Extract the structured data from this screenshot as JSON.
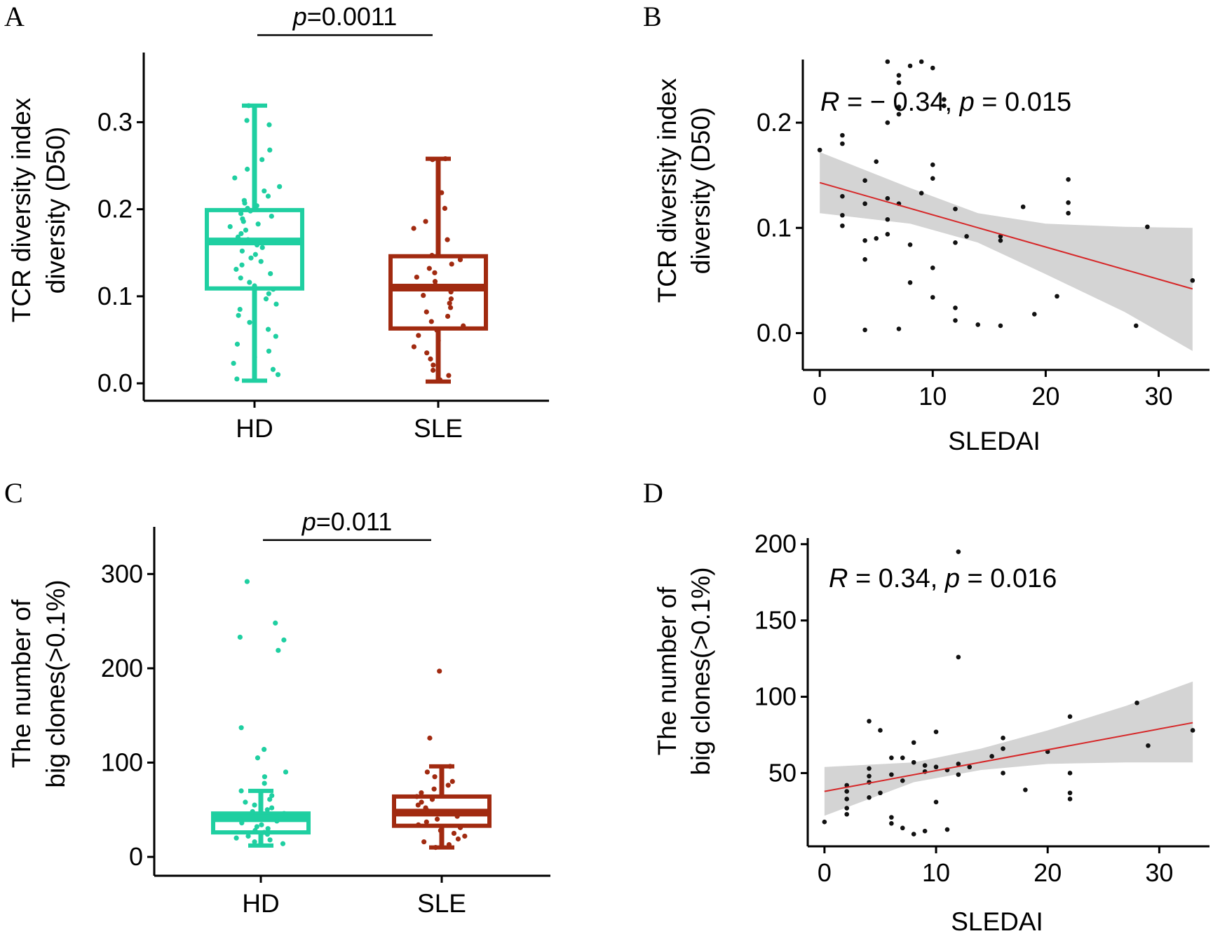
{
  "colors": {
    "hd": "#1fcfa1",
    "sle": "#a12a10",
    "axis": "#000000",
    "point": "#111111",
    "fit": "#d62728",
    "band": "#d4d4d4"
  },
  "chart_data": [
    {
      "panel": "A",
      "type": "box",
      "ylabel_line1": "TCR diversity index",
      "ylabel_line2": "diversity (D50)",
      "categories": [
        "HD",
        "SLE"
      ],
      "ylim": [
        -0.02,
        0.38
      ],
      "yticks": [
        0.0,
        0.1,
        0.2,
        0.3
      ],
      "ytick_labels": [
        "0.0",
        "0.1",
        "0.2",
        "0.3"
      ],
      "boxes": [
        {
          "name": "HD",
          "min": 0.003,
          "q1": 0.109,
          "median": 0.163,
          "q3": 0.199,
          "max": 0.319,
          "points": [
            0.319,
            0.302,
            0.297,
            0.268,
            0.257,
            0.246,
            0.236,
            0.226,
            0.221,
            0.215,
            0.21,
            0.207,
            0.204,
            0.201,
            0.198,
            0.195,
            0.192,
            0.189,
            0.186,
            0.183,
            0.18,
            0.176,
            0.172,
            0.168,
            0.165,
            0.162,
            0.159,
            0.156,
            0.152,
            0.148,
            0.144,
            0.14,
            0.136,
            0.131,
            0.126,
            0.121,
            0.116,
            0.112,
            0.108,
            0.103,
            0.097,
            0.091,
            0.085,
            0.078,
            0.07,
            0.062,
            0.054,
            0.045,
            0.037,
            0.03,
            0.023,
            0.016,
            0.01,
            0.005
          ]
        },
        {
          "name": "SLE",
          "min": 0.002,
          "q1": 0.063,
          "median": 0.11,
          "q3": 0.146,
          "max": 0.258,
          "points": [
            0.258,
            0.257,
            0.219,
            0.201,
            0.186,
            0.178,
            0.165,
            0.147,
            0.142,
            0.137,
            0.132,
            0.127,
            0.122,
            0.117,
            0.113,
            0.109,
            0.105,
            0.101,
            0.097,
            0.092,
            0.087,
            0.082,
            0.077,
            0.071,
            0.066,
            0.061,
            0.055,
            0.049,
            0.042,
            0.035,
            0.028,
            0.021,
            0.015,
            0.009,
            0.004
          ]
        }
      ],
      "pvalue_label": "p",
      "pvalue": "=0.0011",
      "pvalue_y": 0.4
    },
    {
      "panel": "B",
      "type": "scatter",
      "xlabel": "SLEDAI",
      "ylabel_line1": "TCR diversity index",
      "ylabel_line2": "diversity (D50)",
      "xlim": [
        -1.5,
        34.5
      ],
      "ylim": [
        -0.035,
        0.26
      ],
      "xticks": [
        0,
        10,
        20,
        30
      ],
      "xtick_labels": [
        "0",
        "10",
        "20",
        "30"
      ],
      "yticks": [
        0.0,
        0.1,
        0.2
      ],
      "ytick_labels": [
        "0.0",
        "0.1",
        "0.2"
      ],
      "points": [
        [
          0,
          0.174
        ],
        [
          2,
          0.188
        ],
        [
          2,
          0.18
        ],
        [
          2,
          0.13
        ],
        [
          2,
          0.112
        ],
        [
          2,
          0.102
        ],
        [
          4,
          0.145
        ],
        [
          4,
          0.123
        ],
        [
          4,
          0.088
        ],
        [
          4,
          0.07
        ],
        [
          4,
          0.003
        ],
        [
          5,
          0.163
        ],
        [
          5,
          0.09
        ],
        [
          6,
          0.108
        ],
        [
          6,
          0.094
        ],
        [
          6,
          0.128
        ],
        [
          6,
          0.2
        ],
        [
          6,
          0.258
        ],
        [
          7,
          0.208
        ],
        [
          7,
          0.215
        ],
        [
          7,
          0.238
        ],
        [
          7,
          0.245
        ],
        [
          7,
          0.123
        ],
        [
          7,
          0.004
        ],
        [
          8,
          0.048
        ],
        [
          8,
          0.084
        ],
        [
          8,
          0.254
        ],
        [
          9,
          0.258
        ],
        [
          9,
          0.133
        ],
        [
          10,
          0.16
        ],
        [
          10,
          0.147
        ],
        [
          10,
          0.062
        ],
        [
          10,
          0.034
        ],
        [
          10,
          0.252
        ],
        [
          11,
          0.222
        ],
        [
          11,
          0.216
        ],
        [
          12,
          0.118
        ],
        [
          12,
          0.086
        ],
        [
          12,
          0.024
        ],
        [
          12,
          0.012
        ],
        [
          13,
          0.092
        ],
        [
          14,
          0.008
        ],
        [
          16,
          0.092
        ],
        [
          16,
          0.088
        ],
        [
          16,
          0.007
        ],
        [
          18,
          0.12
        ],
        [
          19,
          0.018
        ],
        [
          21,
          0.035
        ],
        [
          22,
          0.146
        ],
        [
          22,
          0.124
        ],
        [
          22,
          0.114
        ],
        [
          28,
          0.007
        ],
        [
          29,
          0.101
        ],
        [
          33,
          0.05
        ]
      ],
      "fit_line": [
        [
          0,
          0.143
        ],
        [
          33,
          0.042
        ]
      ],
      "band_upper": [
        [
          0,
          0.172
        ],
        [
          8,
          0.138
        ],
        [
          14,
          0.114
        ],
        [
          20,
          0.104
        ],
        [
          27,
          0.101
        ],
        [
          33,
          0.1
        ]
      ],
      "band_lower": [
        [
          0,
          0.114
        ],
        [
          8,
          0.104
        ],
        [
          14,
          0.086
        ],
        [
          20,
          0.056
        ],
        [
          27,
          0.02
        ],
        [
          33,
          -0.017
        ]
      ],
      "annotation_r": "R",
      "annotation_text": " = − 0.34, ",
      "annotation_p": "p",
      "annotation_pvalue": " = 0.015"
    },
    {
      "panel": "C",
      "type": "box",
      "ylabel_line1": "The number of",
      "ylabel_line2": "big clones(>0.1%)",
      "categories": [
        "HD",
        "SLE"
      ],
      "ylim": [
        -20,
        350
      ],
      "yticks": [
        0,
        100,
        200,
        300
      ],
      "ytick_labels": [
        "0",
        "100",
        "200",
        "300"
      ],
      "boxes": [
        {
          "name": "HD",
          "min": 12,
          "q1": 26,
          "median": 41,
          "q3": 46,
          "max": 70,
          "points": [
            292,
            248,
            233,
            230,
            219,
            137,
            114,
            105,
            90,
            85,
            78,
            70,
            65,
            61,
            58,
            55,
            52,
            50,
            48,
            46,
            44,
            42,
            40,
            38,
            36,
            34,
            32,
            30,
            28,
            26,
            24,
            22,
            20,
            18,
            16,
            14
          ]
        },
        {
          "name": "SLE",
          "min": 10,
          "q1": 33,
          "median": 47,
          "q3": 64,
          "max": 96,
          "points": [
            197,
            126,
            96,
            90,
            85,
            80,
            76,
            72,
            68,
            64,
            61,
            58,
            55,
            52,
            49,
            46,
            43,
            40,
            37,
            34,
            31,
            28,
            25,
            22,
            19,
            16,
            13,
            10
          ]
        }
      ],
      "pvalue_label": "p",
      "pvalue": "=0.011",
      "pvalue_y": 336
    },
    {
      "panel": "D",
      "type": "scatter",
      "xlabel": "SLEDAI",
      "ylabel_line1": "The number of",
      "ylabel_line2": "big clones(>0.1%)",
      "xlim": [
        -1.5,
        34.5
      ],
      "ylim": [
        2,
        204
      ],
      "xticks": [
        0,
        10,
        20,
        30
      ],
      "xtick_labels": [
        "0",
        "10",
        "20",
        "30"
      ],
      "yticks": [
        50,
        100,
        150,
        200
      ],
      "ytick_labels": [
        "50",
        "100",
        "150",
        "200"
      ],
      "points": [
        [
          0,
          18
        ],
        [
          2,
          42
        ],
        [
          2,
          38
        ],
        [
          2,
          33
        ],
        [
          2,
          27
        ],
        [
          2,
          23
        ],
        [
          4,
          84
        ],
        [
          4,
          53
        ],
        [
          4,
          48
        ],
        [
          4,
          44
        ],
        [
          4,
          34
        ],
        [
          5,
          78
        ],
        [
          5,
          37
        ],
        [
          6,
          60
        ],
        [
          6,
          49
        ],
        [
          6,
          21
        ],
        [
          6,
          17
        ],
        [
          7,
          60
        ],
        [
          7,
          45
        ],
        [
          7,
          14
        ],
        [
          8,
          70
        ],
        [
          8,
          57
        ],
        [
          8,
          10
        ],
        [
          9,
          55
        ],
        [
          9,
          51
        ],
        [
          9,
          12
        ],
        [
          10,
          77
        ],
        [
          10,
          54
        ],
        [
          10,
          31
        ],
        [
          11,
          52
        ],
        [
          11,
          13
        ],
        [
          12,
          195
        ],
        [
          12,
          126
        ],
        [
          12,
          56
        ],
        [
          12,
          49
        ],
        [
          13,
          54
        ],
        [
          15,
          61
        ],
        [
          16,
          73
        ],
        [
          16,
          66
        ],
        [
          16,
          50
        ],
        [
          18,
          39
        ],
        [
          20,
          64
        ],
        [
          22,
          87
        ],
        [
          22,
          50
        ],
        [
          22,
          37
        ],
        [
          22,
          33
        ],
        [
          28,
          96
        ],
        [
          29,
          68
        ],
        [
          33,
          78
        ]
      ],
      "fit_line": [
        [
          0,
          38
        ],
        [
          33,
          83
        ]
      ],
      "band_upper": [
        [
          0,
          54
        ],
        [
          8,
          57
        ],
        [
          14,
          66
        ],
        [
          20,
          78
        ],
        [
          27,
          94
        ],
        [
          33,
          110
        ]
      ],
      "band_lower": [
        [
          0,
          22
        ],
        [
          8,
          44
        ],
        [
          14,
          52
        ],
        [
          20,
          56
        ],
        [
          27,
          57
        ],
        [
          33,
          57
        ]
      ],
      "annotation_r": "R",
      "annotation_text": " = 0.34, ",
      "annotation_p": "p",
      "annotation_pvalue": " = 0.016"
    }
  ]
}
